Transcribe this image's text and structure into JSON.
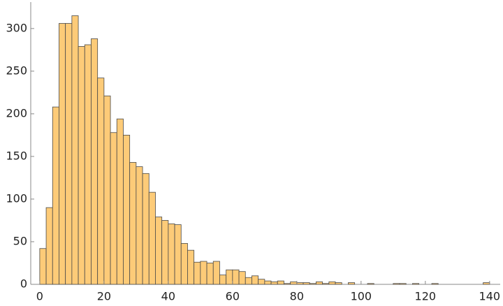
{
  "chart_data": {
    "type": "histogram",
    "bins": [
      0,
      2,
      4,
      6,
      8,
      10,
      12,
      14,
      16,
      18,
      20,
      22,
      24,
      26,
      28,
      30,
      32,
      34,
      36,
      38,
      40,
      42,
      44,
      46,
      48,
      50,
      52,
      54,
      56,
      58,
      60,
      62,
      64,
      66,
      68,
      70,
      72,
      74,
      76,
      78,
      80,
      82,
      84,
      86,
      88,
      90,
      92,
      94,
      96,
      98,
      100,
      102,
      104,
      106,
      108,
      110,
      112,
      114,
      116,
      118,
      120,
      122,
      124,
      126,
      128,
      130,
      132,
      134,
      136,
      138,
      140
    ],
    "values": [
      42,
      90,
      208,
      306,
      306,
      315,
      279,
      281,
      288,
      242,
      221,
      178,
      194,
      175,
      143,
      138,
      130,
      108,
      79,
      75,
      71,
      70,
      48,
      40,
      26,
      27,
      25,
      27,
      11,
      17,
      17,
      15,
      8,
      10,
      6,
      4,
      3,
      4,
      1,
      3,
      2,
      2,
      1,
      3,
      1,
      3,
      2,
      0,
      2,
      0,
      0,
      1,
      0,
      0,
      0,
      1,
      1,
      0,
      1,
      0,
      0,
      1,
      0,
      0,
      0,
      0,
      0,
      0,
      0,
      2
    ],
    "color": "#fdcb78",
    "xlim": [
      -2.8,
      143.3
    ],
    "ylim": [
      0,
      331
    ],
    "xticks": [
      0,
      20,
      40,
      60,
      80,
      100,
      120,
      140
    ],
    "yticks": [
      0,
      50,
      100,
      150,
      200,
      250,
      300
    ]
  }
}
